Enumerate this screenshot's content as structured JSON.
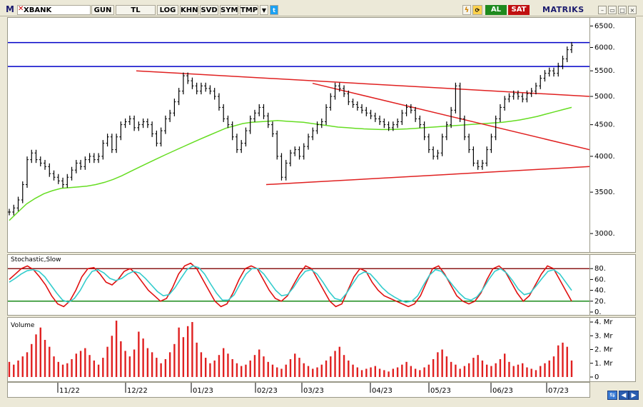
{
  "toolbar": {
    "logo": "M",
    "ticker": "XBANK",
    "buttons": [
      "GUN",
      "TL",
      "LOG",
      "KHN",
      "SVD",
      "SYM",
      "TMP"
    ],
    "buy_label": "AL",
    "sell_label": "SAT",
    "brand": "MATRIKS"
  },
  "colors": {
    "price_bars": "#000000",
    "moving_average": "#66dd22",
    "trend_lines": "#e02020",
    "horizontal_levels": "#0000c8",
    "stoch_k": "#e01010",
    "stoch_d": "#33cccc",
    "stoch_upper": "#8b1a1a",
    "stoch_lower": "#1a8a1a",
    "volume_bars": "#e02020"
  },
  "panels": {
    "stochastic_title": "Stochastic,Slow",
    "volume_title": "Volume"
  },
  "chart_data": [
    {
      "type": "ohlc",
      "title": "XBANK",
      "y_scale": "log",
      "ylim": [
        2800,
        6700
      ],
      "y_ticks": [
        3000,
        3500,
        4000,
        4500,
        5000,
        5500,
        6000,
        6500
      ],
      "y_tick_labels": [
        "3000.",
        "3500.",
        "4000.",
        "4500.",
        "5000.",
        "5500.",
        "6000.",
        "6500."
      ],
      "x_tick_labels": [
        "11/22",
        "12/22",
        "01/23",
        "02/23",
        "03/23",
        "04/23",
        "05/23",
        "06/23",
        "07/23"
      ],
      "close": [
        3250,
        3300,
        3400,
        3600,
        3950,
        4050,
        3950,
        3900,
        3850,
        3750,
        3700,
        3650,
        3600,
        3700,
        3800,
        3900,
        3850,
        3950,
        4000,
        3950,
        4000,
        4200,
        4300,
        4100,
        4300,
        4500,
        4550,
        4600,
        4450,
        4500,
        4550,
        4500,
        4350,
        4200,
        4400,
        4600,
        4700,
        4900,
        5100,
        5400,
        5300,
        5200,
        5100,
        5200,
        5150,
        5100,
        5000,
        4800,
        4600,
        4500,
        4300,
        4100,
        4200,
        4400,
        4600,
        4700,
        4800,
        4650,
        4500,
        4350,
        4000,
        3700,
        3900,
        4050,
        4100,
        4000,
        4150,
        4300,
        4400,
        4500,
        4550,
        4800,
        5000,
        5200,
        5150,
        5050,
        4900,
        4850,
        4800,
        4750,
        4700,
        4650,
        4600,
        4550,
        4500,
        4450,
        4500,
        4550,
        4700,
        4800,
        4750,
        4600,
        4500,
        4300,
        4100,
        4000,
        4050,
        4300,
        4500,
        4750,
        5200,
        4600,
        4300,
        4100,
        3900,
        3850,
        3900,
        4100,
        4300,
        4600,
        4800,
        4950,
        5000,
        5050,
        5000,
        4950,
        5050,
        5100,
        5200,
        5350,
        5450,
        5500,
        5450,
        5600,
        5750,
        5950,
        6050
      ],
      "trend_lines": [
        {
          "from": [
            "12/22",
            5500
          ],
          "to": [
            "07/23",
            5000
          ]
        },
        {
          "from": [
            "03/23",
            5250
          ],
          "to": [
            "07/23",
            4100
          ]
        },
        {
          "from": [
            "02/23",
            3600
          ],
          "to": [
            "07/23",
            3850
          ]
        }
      ],
      "horizontal_levels": [
        5590,
        6110
      ],
      "moving_average": [
        3150,
        3250,
        3350,
        3420,
        3480,
        3520,
        3550,
        3560,
        3570,
        3580,
        3600,
        3630,
        3670,
        3720,
        3780,
        3840,
        3900,
        3960,
        4020,
        4080,
        4140,
        4200,
        4260,
        4320,
        4380,
        4440,
        4480,
        4520,
        4540,
        4550,
        4560,
        4570,
        4560,
        4550,
        4540,
        4520,
        4500,
        4480,
        4460,
        4450,
        4440,
        4430,
        4425,
        4420,
        4420,
        4425,
        4430,
        4440,
        4450,
        4460,
        4470,
        4480,
        4490,
        4500,
        4510,
        4520,
        4530,
        4540,
        4560,
        4580,
        4610,
        4640,
        4680,
        4720,
        4760,
        4800
      ]
    },
    {
      "type": "line",
      "title": "Stochastic,Slow",
      "ylim": [
        0,
        100
      ],
      "y_ticks": [
        0,
        20,
        40,
        60,
        80
      ],
      "y_tick_labels": [
        "0.",
        "20.",
        "40.",
        "60.",
        "80."
      ],
      "reference_levels": [
        20,
        80
      ],
      "series": [
        {
          "values": [
            60,
            70,
            80,
            85,
            78,
            65,
            50,
            30,
            15,
            10,
            20,
            40,
            65,
            80,
            82,
            70,
            55,
            50,
            60,
            75,
            80,
            70,
            55,
            40,
            30,
            20,
            25,
            45,
            70,
            85,
            90,
            80,
            60,
            40,
            20,
            10,
            15,
            35,
            60,
            80,
            85,
            80,
            60,
            40,
            25,
            20,
            30,
            50,
            70,
            85,
            80,
            60,
            40,
            20,
            10,
            15,
            40,
            65,
            80,
            75,
            55,
            40,
            30,
            25,
            20,
            15,
            10,
            15,
            30,
            55,
            80,
            85,
            70,
            50,
            30,
            20,
            15,
            20,
            35,
            60,
            80,
            85,
            75,
            55,
            35,
            20,
            30,
            50,
            70,
            85,
            80,
            60,
            40,
            20
          ]
        },
        {
          "values": [
            55,
            62,
            70,
            76,
            78,
            75,
            65,
            50,
            35,
            22,
            18,
            25,
            40,
            60,
            75,
            78,
            72,
            62,
            58,
            62,
            70,
            75,
            72,
            62,
            50,
            38,
            30,
            32,
            45,
            62,
            78,
            85,
            82,
            70,
            52,
            35,
            22,
            22,
            32,
            52,
            70,
            80,
            80,
            70,
            55,
            40,
            30,
            32,
            45,
            62,
            75,
            78,
            70,
            55,
            38,
            25,
            22,
            35,
            52,
            68,
            74,
            70,
            58,
            45,
            35,
            28,
            22,
            18,
            20,
            30,
            50,
            68,
            78,
            75,
            62,
            48,
            35,
            25,
            22,
            28,
            42,
            60,
            75,
            80,
            72,
            58,
            42,
            32,
            35,
            48,
            62,
            75,
            78,
            70,
            55,
            40
          ]
        }
      ]
    },
    {
      "type": "bar",
      "title": "Volume",
      "ylim": [
        0,
        4
      ],
      "y_ticks": [
        0,
        1,
        2,
        3,
        4
      ],
      "y_tick_labels": [
        "0",
        "1. Mr",
        "2. Mr",
        "3. Mr",
        "4. Mr"
      ],
      "values": [
        1.1,
        0.9,
        1.2,
        1.5,
        1.8,
        2.4,
        3.1,
        3.6,
        2.7,
        2.2,
        1.5,
        1.1,
        0.9,
        1.0,
        1.3,
        1.7,
        1.9,
        2.1,
        1.6,
        1.2,
        0.9,
        1.4,
        2.2,
        3.0,
        4.1,
        2.6,
        1.9,
        1.5,
        2.0,
        3.3,
        2.8,
        2.1,
        1.8,
        1.4,
        1.0,
        1.3,
        1.8,
        2.4,
        3.6,
        2.9,
        3.7,
        4.0,
        2.5,
        1.8,
        1.4,
        1.0,
        1.2,
        1.6,
        2.1,
        1.7,
        1.3,
        1.0,
        0.8,
        0.9,
        1.2,
        1.6,
        2.0,
        1.5,
        1.1,
        0.9,
        0.7,
        0.6,
        0.9,
        1.3,
        1.7,
        1.4,
        1.0,
        0.8,
        0.6,
        0.7,
        0.9,
        1.2,
        1.5,
        1.9,
        2.2,
        1.6,
        1.2,
        0.9,
        0.7,
        0.5,
        0.6,
        0.7,
        0.8,
        0.6,
        0.5,
        0.4,
        0.6,
        0.7,
        0.9,
        1.1,
        0.8,
        0.6,
        0.5,
        0.7,
        0.9,
        1.3,
        1.8,
        2.0,
        1.5,
        1.1,
        0.9,
        0.6,
        0.8,
        1.0,
        1.4,
        1.6,
        1.2,
        0.9,
        0.8,
        1.0,
        1.3,
        1.7,
        1.1,
        0.8,
        0.9,
        1.0,
        0.7,
        0.6,
        0.5,
        0.8,
        1.0,
        1.2,
        1.5,
        2.3,
        2.5,
        2.2,
        1.2
      ]
    }
  ]
}
